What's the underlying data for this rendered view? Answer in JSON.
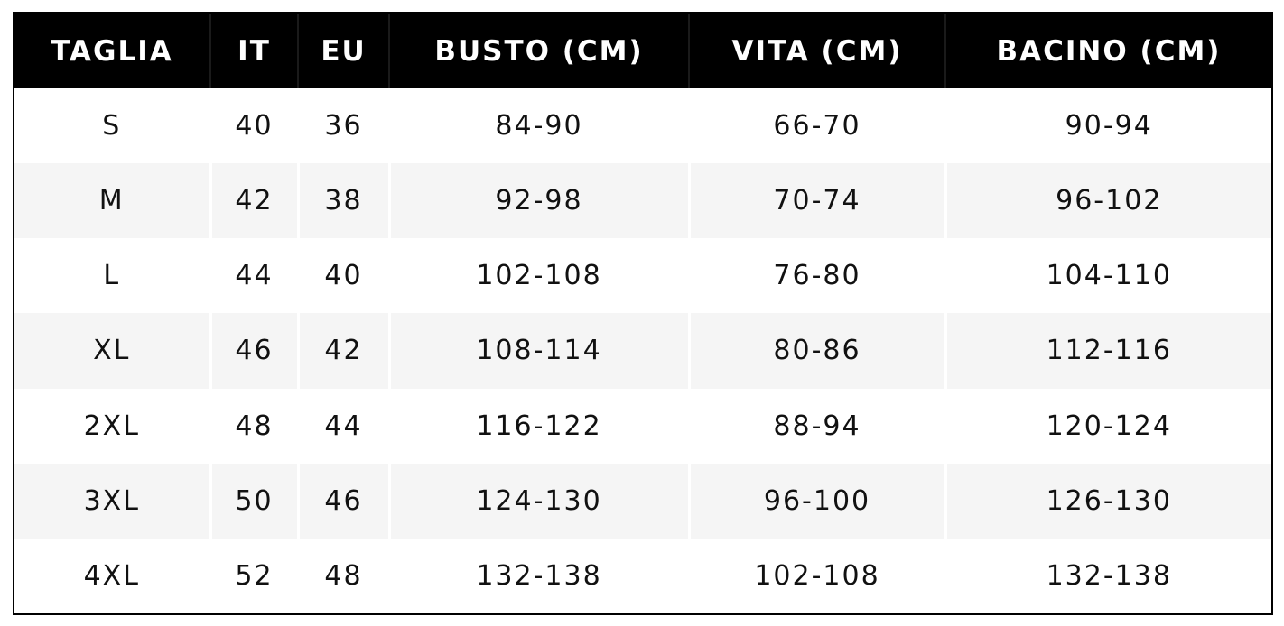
{
  "colors": {
    "header_background": "#000000",
    "header_text": "#ffffff",
    "row_alt_background": "#f5f5f5",
    "row_background": "#ffffff",
    "cell_text": "#111111"
  },
  "size_chart": {
    "headers": [
      "TAGLIA",
      "IT",
      "EU",
      "BUSTO (CM)",
      "VITA (CM)",
      "BACINO (CM)"
    ],
    "rows": [
      [
        "S",
        "40",
        "36",
        "84-90",
        "66-70",
        "90-94"
      ],
      [
        "M",
        "42",
        "38",
        "92-98",
        "70-74",
        "96-102"
      ],
      [
        "L",
        "44",
        "40",
        "102-108",
        "76-80",
        "104-110"
      ],
      [
        "XL",
        "46",
        "42",
        "108-114",
        "80-86",
        "112-116"
      ],
      [
        "2XL",
        "48",
        "44",
        "116-122",
        "88-94",
        "120-124"
      ],
      [
        "3XL",
        "50",
        "46",
        "124-130",
        "96-100",
        "126-130"
      ],
      [
        "4XL",
        "52",
        "48",
        "132-138",
        "102-108",
        "132-138"
      ]
    ]
  }
}
